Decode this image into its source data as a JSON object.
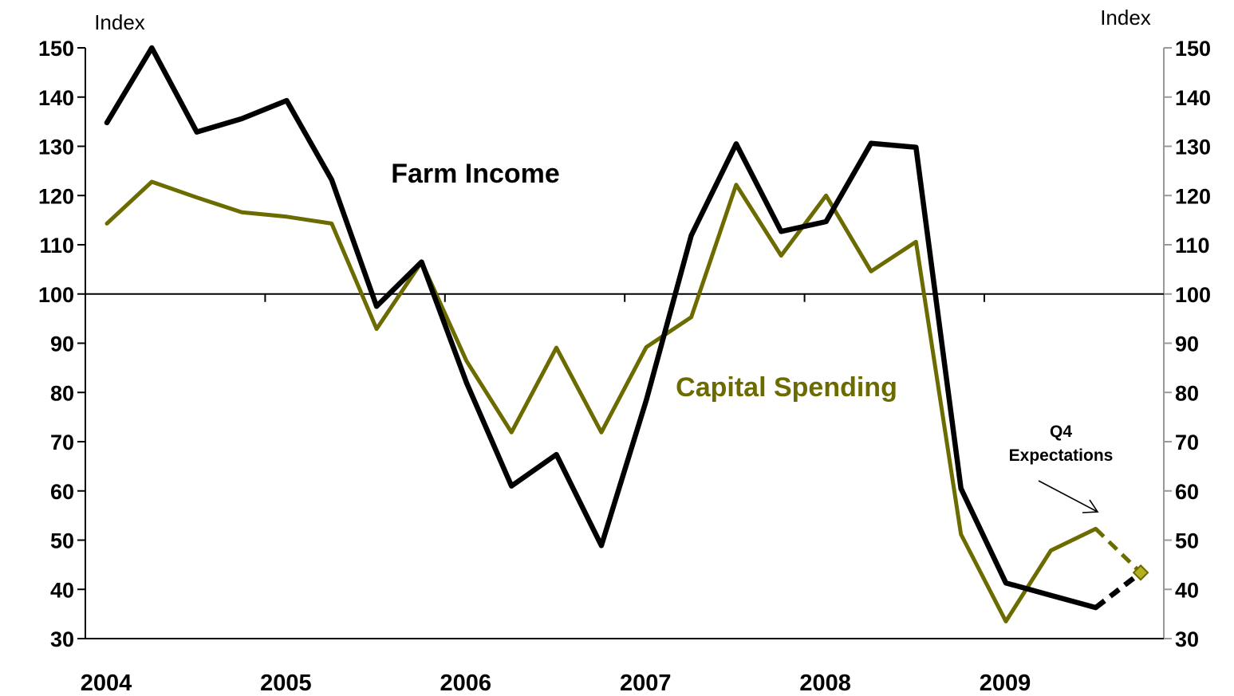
{
  "chart_data": {
    "type": "line",
    "title": "",
    "y_unit_left": "Index",
    "y_unit_right": "Index",
    "ylim": [
      30,
      150
    ],
    "yticks": [
      30,
      40,
      50,
      60,
      70,
      80,
      90,
      100,
      110,
      120,
      130,
      140,
      150
    ],
    "reference_line": 100,
    "x_labels": [
      "2004",
      "2005",
      "2006",
      "2007",
      "2008",
      "2009"
    ],
    "x_quarters": [
      "2004 Q1",
      "2004 Q2",
      "2004 Q3",
      "2004 Q4",
      "2005 Q1",
      "2005 Q2",
      "2005 Q3",
      "2005 Q4",
      "2006 Q1",
      "2006 Q2",
      "2006 Q3",
      "2006 Q4",
      "2007 Q1",
      "2007 Q2",
      "2007 Q3",
      "2007 Q4",
      "2008 Q1",
      "2008 Q2",
      "2008 Q3",
      "2008 Q4",
      "2009 Q1",
      "2009 Q2",
      "2009 Q3",
      "2009 Q4"
    ],
    "series": [
      {
        "name": "Farm Income",
        "color": "#000000",
        "values": [
          134.8,
          150.0,
          132.9,
          135.6,
          139.3,
          123.2,
          97.5,
          106.5,
          82.0,
          61.0,
          67.4,
          48.9,
          78.4,
          111.9,
          130.5,
          112.7,
          114.7,
          130.6,
          129.8,
          60.5,
          41.3,
          38.8,
          36.3
        ],
        "expectation": 43.4
      },
      {
        "name": "Capital Spending",
        "color": "#6b6b00",
        "values": [
          114.3,
          122.8,
          119.6,
          116.6,
          115.7,
          114.3,
          92.9,
          106.5,
          86.4,
          71.9,
          89.1,
          71.9,
          89.2,
          95.3,
          122.2,
          107.8,
          120.0,
          104.6,
          110.6,
          51.2,
          33.5,
          47.9,
          52.3
        ],
        "expectation": 43.4
      }
    ],
    "annotation": {
      "line1": "Q4",
      "line2": "Expectations"
    }
  }
}
